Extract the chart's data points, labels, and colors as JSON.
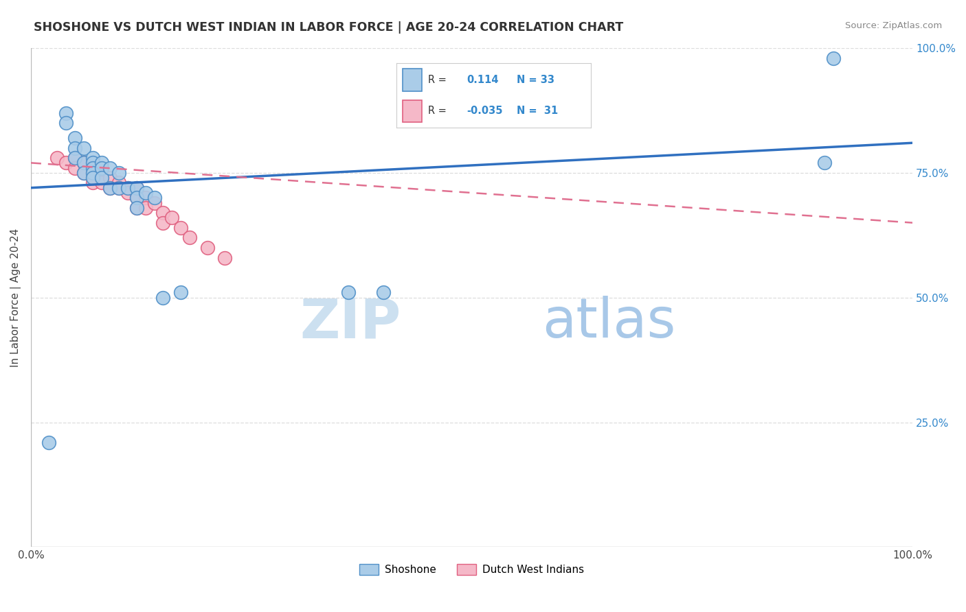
{
  "title": "SHOSHONE VS DUTCH WEST INDIAN IN LABOR FORCE | AGE 20-24 CORRELATION CHART",
  "source_text": "Source: ZipAtlas.com",
  "ylabel": "In Labor Force | Age 20-24",
  "xlim": [
    0,
    1.0
  ],
  "ylim": [
    0,
    1.0
  ],
  "ytick_labels": [
    "25.0%",
    "50.0%",
    "75.0%",
    "100.0%"
  ],
  "ytick_positions": [
    0.25,
    0.5,
    0.75,
    1.0
  ],
  "shoshone_color": "#aacce8",
  "dutch_color": "#f5b8c8",
  "shoshone_edge_color": "#5090c8",
  "dutch_edge_color": "#e06080",
  "shoshone_line_color": "#3070c0",
  "dutch_line_color": "#e07090",
  "watermark_zip": "ZIP",
  "watermark_atlas": "atlas",
  "watermark_color_zip": "#c0d8ee",
  "watermark_color_atlas": "#a0c4e0",
  "background_color": "#ffffff",
  "grid_color": "#dddddd",
  "shoshone_x": [
    0.02,
    0.04,
    0.04,
    0.05,
    0.05,
    0.05,
    0.06,
    0.06,
    0.06,
    0.07,
    0.07,
    0.07,
    0.07,
    0.07,
    0.08,
    0.08,
    0.08,
    0.09,
    0.09,
    0.1,
    0.1,
    0.11,
    0.12,
    0.12,
    0.12,
    0.13,
    0.14,
    0.15,
    0.17,
    0.36,
    0.4,
    0.9,
    0.91
  ],
  "shoshone_y": [
    0.21,
    0.87,
    0.85,
    0.82,
    0.8,
    0.78,
    0.8,
    0.77,
    0.75,
    0.78,
    0.77,
    0.76,
    0.75,
    0.74,
    0.77,
    0.76,
    0.74,
    0.76,
    0.72,
    0.75,
    0.72,
    0.72,
    0.72,
    0.7,
    0.68,
    0.71,
    0.7,
    0.5,
    0.51,
    0.51,
    0.51,
    0.77,
    0.98
  ],
  "dutch_x": [
    0.03,
    0.04,
    0.05,
    0.05,
    0.06,
    0.06,
    0.07,
    0.07,
    0.07,
    0.07,
    0.08,
    0.08,
    0.09,
    0.09,
    0.1,
    0.1,
    0.11,
    0.11,
    0.12,
    0.12,
    0.12,
    0.13,
    0.13,
    0.14,
    0.15,
    0.15,
    0.16,
    0.17,
    0.18,
    0.2,
    0.22
  ],
  "dutch_y": [
    0.78,
    0.77,
    0.78,
    0.76,
    0.77,
    0.75,
    0.76,
    0.75,
    0.74,
    0.73,
    0.75,
    0.73,
    0.74,
    0.72,
    0.73,
    0.72,
    0.72,
    0.71,
    0.72,
    0.7,
    0.68,
    0.7,
    0.68,
    0.69,
    0.67,
    0.65,
    0.66,
    0.64,
    0.62,
    0.6,
    0.58
  ],
  "r1": 0.114,
  "n1": 33,
  "r2": -0.035,
  "n2": 31
}
